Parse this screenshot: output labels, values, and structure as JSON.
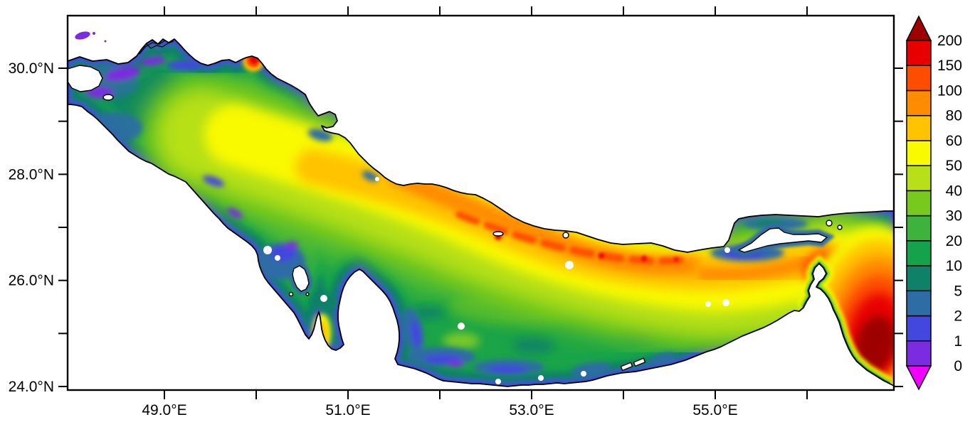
{
  "figure": {
    "kind": "filled-contour map with colorbar",
    "region_shown": "Persian Gulf and Strait of Hormuz",
    "background_color": "#ffffff",
    "frame_color": "#000000",
    "land_color": "#ffffff",
    "coastline_color": "#000000",
    "sea_base_color": "#3db33d"
  },
  "x_axis": {
    "ticks": [
      {
        "value": 49,
        "label": "49.0°E"
      },
      {
        "value": 50,
        "label": ""
      },
      {
        "value": 51,
        "label": "51.0°E"
      },
      {
        "value": 52,
        "label": ""
      },
      {
        "value": 53,
        "label": "53.0°E"
      },
      {
        "value": 54,
        "label": ""
      },
      {
        "value": 55,
        "label": "55.0°E"
      },
      {
        "value": 56,
        "label": ""
      }
    ]
  },
  "y_axis": {
    "ticks": [
      {
        "value": 30,
        "label": "30.0°N"
      },
      {
        "value": 29,
        "label": ""
      },
      {
        "value": 28,
        "label": "28.0°N"
      },
      {
        "value": 27,
        "label": ""
      },
      {
        "value": 26,
        "label": "26.0°N"
      },
      {
        "value": 25,
        "label": ""
      },
      {
        "value": 24,
        "label": "24.0°N"
      }
    ]
  },
  "colorbar": {
    "levels": [
      0,
      1,
      2,
      5,
      10,
      20,
      30,
      40,
      50,
      60,
      80,
      100,
      150,
      200
    ],
    "tick_labels": [
      "0",
      "1",
      "2",
      "5",
      "10",
      "20",
      "30",
      "40",
      "50",
      "60",
      "80",
      "100",
      "150",
      "200"
    ],
    "segment_colors": [
      "#7b2be0",
      "#4347dd",
      "#2e6ca6",
      "#0f8168",
      "#14a24b",
      "#3db33d",
      "#77c91e",
      "#b7e018",
      "#f9f900",
      "#ffc300",
      "#ff8c00",
      "#fd4e00",
      "#e80000"
    ],
    "under_arrow_color": "#f000ff",
    "over_arrow_color": "#9e0000"
  },
  "chart_data": {
    "type": "heatmap",
    "title": "",
    "xlabel": "",
    "ylabel": "",
    "x_range_deg_east": [
      47.95,
      56.98
    ],
    "y_range_deg_north": [
      23.93,
      30.97
    ],
    "x_tick_labels": [
      "49.0°E",
      "51.0°E",
      "53.0°E",
      "55.0°E"
    ],
    "y_tick_labels": [
      "30.0°N",
      "28.0°N",
      "26.0°N",
      "24.0°N"
    ],
    "color_scale_levels": [
      0,
      1,
      2,
      5,
      10,
      20,
      30,
      40,
      50,
      60,
      80,
      100,
      150,
      200
    ],
    "legend_position": "right",
    "grid": false,
    "sampled_values": [
      {
        "lon": 48.3,
        "lat": 30.2,
        "value": 1
      },
      {
        "lon": 48.6,
        "lat": 29.8,
        "value": 5
      },
      {
        "lon": 49.3,
        "lat": 29.3,
        "value": 20
      },
      {
        "lon": 50.2,
        "lat": 28.8,
        "value": 40
      },
      {
        "lon": 50.8,
        "lat": 28.3,
        "value": 55
      },
      {
        "lon": 51.5,
        "lat": 27.7,
        "value": 70
      },
      {
        "lon": 52.3,
        "lat": 27.1,
        "value": 85
      },
      {
        "lon": 53.0,
        "lat": 26.6,
        "value": 110
      },
      {
        "lon": 54.0,
        "lat": 26.3,
        "value": 80
      },
      {
        "lon": 51.3,
        "lat": 26.0,
        "value": 20
      },
      {
        "lon": 50.7,
        "lat": 24.9,
        "value": 65
      },
      {
        "lon": 52.5,
        "lat": 24.8,
        "value": 10
      },
      {
        "lon": 54.5,
        "lat": 24.9,
        "value": 15
      },
      {
        "lon": 56.3,
        "lat": 26.4,
        "value": 150
      },
      {
        "lon": 56.8,
        "lat": 25.2,
        "value": 220
      }
    ]
  }
}
